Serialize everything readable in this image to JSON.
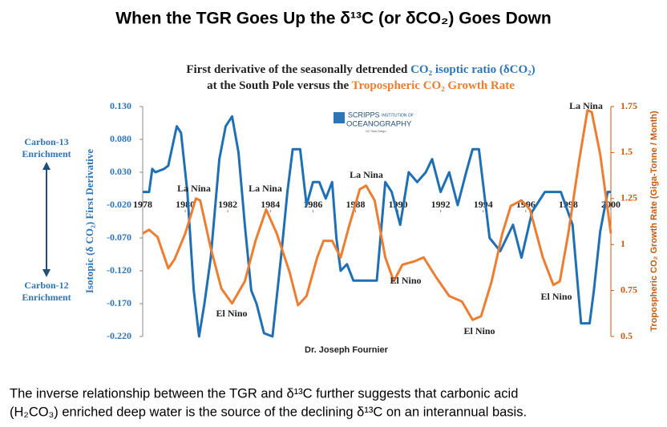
{
  "header": {
    "title": "When the TGR Goes Up the δ¹³C  (or δCO₂) Goes Down"
  },
  "chart_data": {
    "type": "line",
    "title": [
      "First derivative of the seasonally detrended ",
      "CO₂ isoptic ratio (δCO₂)",
      "at the South Pole versus the ",
      "Tropospheric CO₂ Growth Rate"
    ],
    "ylabel": "Isotopic (δ CO₂) First Derivative",
    "y2label": "Tropospheric CO₂ Growth Rate (Giga-Tonne / Month)",
    "side_notes": [
      "Carbon-13",
      "Enrichment",
      "Carbon-12",
      "Enrichment"
    ],
    "logo": [
      "SCRIPPS",
      "INSTITUTION OF",
      "OCEANOGRAPHY",
      "UC San Diego"
    ],
    "credit": "Dr. Joseph Fournier",
    "annotations": [
      "La Nina",
      "La Nina",
      "La Nina",
      "La Nina",
      "El Nino",
      "El Nino",
      "El Nino",
      "El Nino"
    ],
    "xlim": [
      1978,
      2000
    ],
    "xticks": [
      1978,
      1980,
      1982,
      1984,
      1986,
      1988,
      1990,
      1992,
      1994,
      1996,
      1998,
      2000
    ],
    "ylim": [
      -0.22,
      0.13
    ],
    "yticks": [
      {
        "value": 0.13,
        "label": "0.130"
      },
      {
        "value": 0.08,
        "label": "0.080"
      },
      {
        "value": 0.03,
        "label": "0.030"
      },
      {
        "value": -0.02,
        "label": "-0.020"
      },
      {
        "value": -0.07,
        "label": "-0.070"
      },
      {
        "value": -0.12,
        "label": "-0.120"
      },
      {
        "value": -0.17,
        "label": "-0.170"
      },
      {
        "value": -0.22,
        "label": "-0.220"
      }
    ],
    "y2lim": [
      0.5,
      1.75
    ],
    "y2ticks": [
      1.75,
      1.5,
      1.25,
      1,
      0.75,
      0.5
    ],
    "grid": false,
    "series": [
      {
        "color": "#1f6fb5",
        "x": [
          1978,
          1978.3,
          1978.45,
          1978.6,
          1979,
          1979.2,
          1979.4,
          1979.6,
          1979.8,
          1980.1,
          1980.4,
          1980.65,
          1980.9,
          1981.2,
          1981.6,
          1981.9,
          1982.2,
          1982.5,
          1982.8,
          1983.1,
          1983.35,
          1983.7,
          1984.1,
          1984.5,
          1984.8,
          1985.05,
          1985.4,
          1985.7,
          1986,
          1986.3,
          1986.6,
          1986.9,
          1987.1,
          1987.3,
          1987.6,
          1987.9,
          1988.4,
          1989,
          1989.4,
          1989.7,
          1990.1,
          1990.5,
          1990.9,
          1991.3,
          1991.6,
          1992,
          1992.4,
          1992.8,
          1993.2,
          1993.5,
          1993.8,
          1994.3,
          1994.8,
          1995.4,
          1995.8,
          1996.3,
          1996.9,
          1997.65,
          1998.2,
          1998.6,
          1999,
          1999.2,
          1999.5,
          1999.85,
          2000
        ],
        "values": [
          0.0,
          0.0,
          0.035,
          0.03,
          0.035,
          0.04,
          0.07,
          0.1,
          0.09,
          0.0,
          -0.15,
          -0.22,
          -0.17,
          -0.1,
          0.05,
          0.1,
          0.115,
          0.06,
          -0.05,
          -0.15,
          -0.17,
          -0.215,
          -0.22,
          -0.1,
          0.0,
          0.065,
          0.065,
          -0.02,
          0.015,
          0.015,
          -0.01,
          0.015,
          -0.07,
          -0.12,
          -0.11,
          -0.135,
          -0.135,
          -0.135,
          0.015,
          0.0,
          -0.05,
          0.03,
          0.015,
          0.03,
          0.05,
          0.0,
          0.03,
          -0.02,
          0.03,
          0.065,
          0.065,
          -0.07,
          -0.09,
          -0.05,
          -0.1,
          -0.03,
          0.0,
          0.0,
          -0.05,
          -0.2,
          -0.2,
          -0.15,
          -0.06,
          0.0,
          0.0
        ]
      },
      {
        "color": "#ed7d31",
        "axis": "y2",
        "x": [
          1978,
          1978.3,
          1978.7,
          1979.2,
          1979.5,
          1980,
          1980.5,
          1980.7,
          1981.2,
          1981.7,
          1982.2,
          1982.8,
          1983.3,
          1983.8,
          1984.3,
          1984.9,
          1985.3,
          1985.7,
          1986.2,
          1986.5,
          1986.9,
          1987.3,
          1987.7,
          1988.2,
          1988.5,
          1988.9,
          1989.4,
          1989.8,
          1990.2,
          1990.8,
          1991.2,
          1991.8,
          1992.4,
          1993,
          1993.5,
          1993.9,
          1994.4,
          1994.9,
          1995.3,
          1995.8,
          1996.2,
          1996.8,
          1997.3,
          1997.6,
          1998,
          1998.5,
          1998.9,
          1999.1,
          1999.5,
          2000
        ],
        "values": [
          1.06,
          1.08,
          1.04,
          0.87,
          0.92,
          1.06,
          1.25,
          1.24,
          0.98,
          0.76,
          0.68,
          0.8,
          1.02,
          1.19,
          1.06,
          0.85,
          0.67,
          0.72,
          0.93,
          1.02,
          1.02,
          0.93,
          1.1,
          1.3,
          1.32,
          1.24,
          0.93,
          0.8,
          0.89,
          0.91,
          0.93,
          0.82,
          0.72,
          0.69,
          0.59,
          0.61,
          0.8,
          1.06,
          1.21,
          1.24,
          1.19,
          0.93,
          0.78,
          0.8,
          1.06,
          1.45,
          1.73,
          1.72,
          1.49,
          1.06
        ]
      }
    ]
  },
  "caption": [
    "The inverse relationship between the TGR and δ¹³C further suggests that carbonic acid",
    "(H₂CO₃) enriched deep water is the source of the declining δ¹³C on an interannual basis."
  ]
}
